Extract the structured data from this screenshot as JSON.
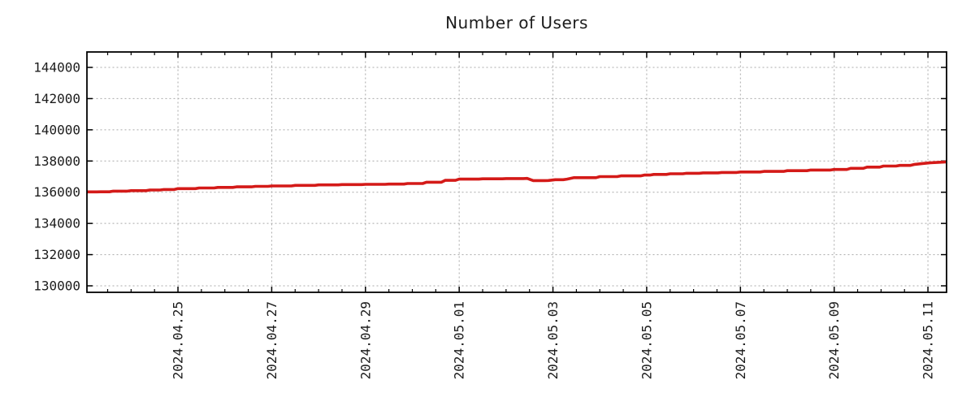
{
  "title": "Number of Users",
  "colors": {
    "line": "#d41a18",
    "grid": "#a9a9a9",
    "frame": "#000000",
    "text": "#1c1c1c",
    "background": "#ffffff"
  },
  "chart_data": {
    "type": "line",
    "title": "Number of Users",
    "xlabel": "",
    "ylabel": "",
    "legend": false,
    "grid": true,
    "x_axis": {
      "epoch_date": "2024-04-23",
      "visible_range_days": [
        0.058,
        18.4
      ],
      "major_tick_days": [
        2,
        4,
        6,
        8,
        10,
        12,
        14,
        16,
        18
      ],
      "major_tick_labels": [
        "2024.04.25",
        "2024.04.27",
        "2024.04.29",
        "2024.05.01",
        "2024.05.03",
        "2024.05.05",
        "2024.05.07",
        "2024.05.09",
        "2024.05.11"
      ],
      "minor_tick_interval_days": 0.5
    },
    "y_axis": {
      "range": [
        129580,
        145000
      ],
      "tick_values": [
        130000,
        132000,
        134000,
        136000,
        138000,
        140000,
        142000,
        144000
      ],
      "tick_labels": [
        "130000",
        "132000",
        "134000",
        "136000",
        "138000",
        "140000",
        "142000",
        "144000"
      ]
    },
    "series": [
      {
        "name": "Number of Users",
        "color": "#d41a18",
        "points_day_value": [
          [
            0.06,
            136020
          ],
          [
            0.35,
            136025
          ],
          [
            0.62,
            136070
          ],
          [
            1.0,
            136100
          ],
          [
            1.4,
            136140
          ],
          [
            1.7,
            136170
          ],
          [
            2.0,
            136230
          ],
          [
            2.45,
            136270
          ],
          [
            2.85,
            136310
          ],
          [
            3.25,
            136345
          ],
          [
            3.65,
            136375
          ],
          [
            4.0,
            136400
          ],
          [
            4.5,
            136440
          ],
          [
            5.0,
            136470
          ],
          [
            5.5,
            136490
          ],
          [
            6.0,
            136505
          ],
          [
            6.5,
            136520
          ],
          [
            6.9,
            136560
          ],
          [
            7.3,
            136640
          ],
          [
            7.7,
            136760
          ],
          [
            8.0,
            136840
          ],
          [
            8.5,
            136860
          ],
          [
            9.0,
            136875
          ],
          [
            9.45,
            136885
          ],
          [
            9.58,
            136745
          ],
          [
            9.9,
            136750
          ],
          [
            10.05,
            136800
          ],
          [
            10.3,
            136840
          ],
          [
            10.45,
            136930
          ],
          [
            11.0,
            137000
          ],
          [
            11.45,
            137045
          ],
          [
            11.95,
            137100
          ],
          [
            12.15,
            137140
          ],
          [
            12.5,
            137180
          ],
          [
            12.85,
            137215
          ],
          [
            13.2,
            137240
          ],
          [
            13.6,
            137265
          ],
          [
            14.0,
            137295
          ],
          [
            14.5,
            137335
          ],
          [
            15.0,
            137380
          ],
          [
            15.5,
            137420
          ],
          [
            16.0,
            137460
          ],
          [
            16.35,
            137530
          ],
          [
            16.7,
            137610
          ],
          [
            17.05,
            137675
          ],
          [
            17.4,
            137720
          ],
          [
            17.7,
            137775
          ],
          [
            17.9,
            137845
          ],
          [
            18.05,
            137885
          ],
          [
            18.22,
            137915
          ],
          [
            18.4,
            137935
          ]
        ]
      }
    ]
  }
}
